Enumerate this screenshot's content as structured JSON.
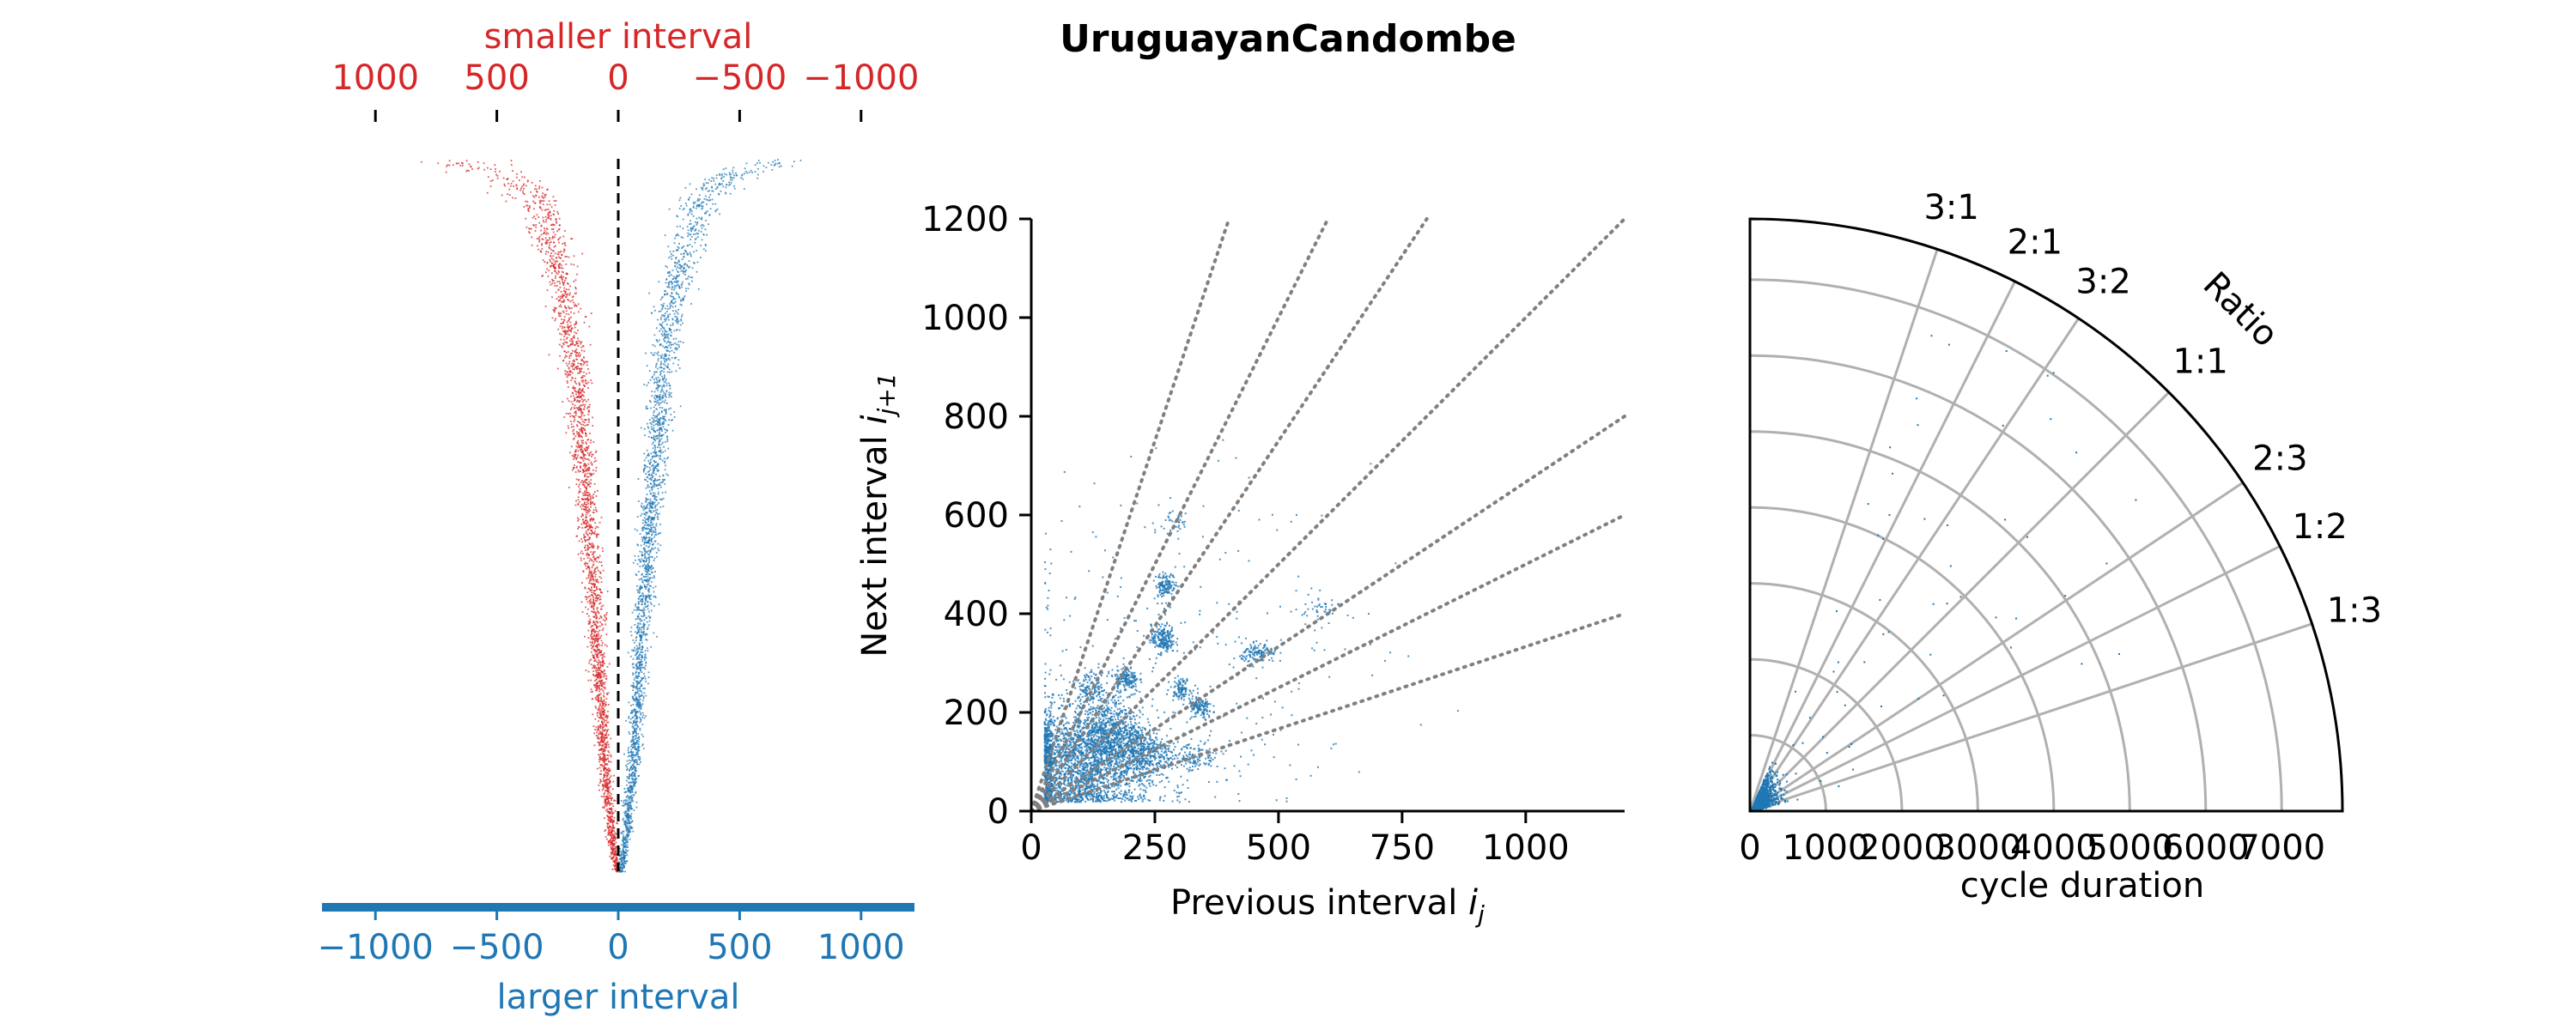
{
  "title": "UruguayanCandombe",
  "chart_data": [
    {
      "type": "scatter",
      "panel": "interval-difference",
      "top_axis_label": "smaller interval",
      "bottom_axis_label": "larger interval",
      "top_ticks": [
        1000,
        500,
        0,
        -500,
        -1000
      ],
      "top_tick_labels": [
        "1000",
        "500",
        "0",
        "−500",
        "−1000"
      ],
      "bottom_ticks": [
        -1000,
        -500,
        0,
        500,
        1000
      ],
      "bottom_tick_labels": [
        "−1000",
        "−500",
        "0",
        "500",
        "1000"
      ],
      "xlim": [
        -1220,
        1220
      ],
      "reference_line_x": 0,
      "series": [
        {
          "color": "#d62728",
          "side": "smaller",
          "profile_x": [
            -700,
            -460,
            -330,
            -270,
            -220,
            -180,
            -140,
            -95,
            -60,
            -30,
            -10
          ],
          "profile_depth": [
            0.0,
            0.02,
            0.06,
            0.13,
            0.2,
            0.3,
            0.45,
            0.65,
            0.85,
            0.95,
            1.0
          ]
        },
        {
          "color": "#1f77b4",
          "side": "larger",
          "profile_x": [
            700,
            460,
            330,
            270,
            220,
            180,
            140,
            95,
            60,
            30,
            10
          ],
          "profile_depth": [
            0.0,
            0.02,
            0.06,
            0.13,
            0.2,
            0.3,
            0.45,
            0.65,
            0.85,
            0.95,
            1.0
          ]
        }
      ],
      "colors": {
        "smaller": "#d62728",
        "larger": "#1f77b4"
      }
    },
    {
      "type": "scatter",
      "panel": "return-map",
      "xlabel": "Previous interval",
      "xlabel_math": "i",
      "xlabel_sub": "j",
      "ylabel": "Next interval",
      "ylabel_math": "i",
      "ylabel_sub": "j+1",
      "xlim": [
        0,
        1200
      ],
      "ylim": [
        0,
        1200
      ],
      "xticks": [
        0,
        250,
        500,
        750,
        1000
      ],
      "yticks": [
        0,
        200,
        400,
        600,
        800,
        1000,
        1200
      ],
      "ratio_lines": [
        3,
        2,
        1.5,
        1,
        0.6667,
        0.5,
        0.3333
      ],
      "point_color": "#1f77b4",
      "line_color": "#808080",
      "clusters": [
        {
          "x": 90,
          "y": 95,
          "sx": 75,
          "sy": 55,
          "n": 2200
        },
        {
          "x": 150,
          "y": 160,
          "sx": 35,
          "sy": 35,
          "n": 700
        },
        {
          "x": 220,
          "y": 120,
          "sx": 30,
          "sy": 30,
          "n": 500
        },
        {
          "x": 265,
          "y": 350,
          "sx": 12,
          "sy": 14,
          "n": 200
        },
        {
          "x": 270,
          "y": 460,
          "sx": 10,
          "sy": 12,
          "n": 130
        },
        {
          "x": 190,
          "y": 270,
          "sx": 12,
          "sy": 12,
          "n": 150
        },
        {
          "x": 460,
          "y": 320,
          "sx": 18,
          "sy": 10,
          "n": 130
        },
        {
          "x": 340,
          "y": 210,
          "sx": 12,
          "sy": 12,
          "n": 120
        },
        {
          "x": 300,
          "y": 250,
          "sx": 10,
          "sy": 10,
          "n": 100
        },
        {
          "x": 120,
          "y": 250,
          "sx": 18,
          "sy": 18,
          "n": 150
        },
        {
          "x": 330,
          "y": 110,
          "sx": 25,
          "sy": 15,
          "n": 120
        },
        {
          "x": 290,
          "y": 590,
          "sx": 15,
          "sy": 20,
          "n": 40
        },
        {
          "x": 580,
          "y": 410,
          "sx": 20,
          "sy": 15,
          "n": 40
        },
        {
          "x": 300,
          "y": 300,
          "sx": 200,
          "sy": 170,
          "n": 300
        }
      ]
    },
    {
      "type": "scatter",
      "panel": "polar-ratio",
      "xlabel": "cycle duration",
      "radial_ticks": [
        0,
        1000,
        2000,
        3000,
        4000,
        5000,
        6000,
        7000
      ],
      "radial_tick_labels": [
        "0",
        "1000",
        "2000",
        "3000",
        "4000",
        "5000",
        "6000",
        "7000"
      ],
      "rmax": 7800,
      "ratio_axis_label": "Ratio",
      "ratio_labels": [
        {
          "label": "3:1",
          "ratio": 3
        },
        {
          "label": "2:1",
          "ratio": 2
        },
        {
          "label": "3:2",
          "ratio": 1.5
        },
        {
          "label": "1:1",
          "ratio": 1
        },
        {
          "label": "2:3",
          "ratio": 0.6667
        },
        {
          "label": "1:2",
          "ratio": 0.5
        },
        {
          "label": "1:3",
          "ratio": 0.3333
        }
      ],
      "point_color": "#1f77b4",
      "grid_color": "#b0b0b0"
    }
  ]
}
